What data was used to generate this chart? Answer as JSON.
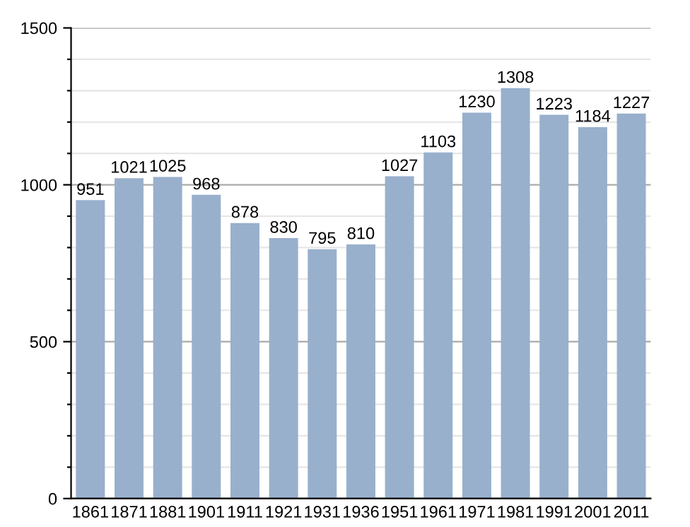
{
  "chart_data": {
    "type": "bar",
    "categories": [
      "1861",
      "1871",
      "1881",
      "1901",
      "1911",
      "1921",
      "1931",
      "1936",
      "1951",
      "1961",
      "1971",
      "1981",
      "1991",
      "2001",
      "2011"
    ],
    "values": [
      951,
      1021,
      1025,
      968,
      878,
      830,
      795,
      810,
      1027,
      1103,
      1230,
      1308,
      1223,
      1184,
      1227
    ],
    "color": "#98b0cc",
    "ylim": [
      0,
      1500
    ],
    "yticks": [
      0,
      {
        "value": 100,
        "label": null
      },
      {
        "value": 200,
        "label": null
      },
      {
        "value": 300,
        "label": null
      },
      {
        "value": 400,
        "label": null
      },
      500,
      {
        "value": 600,
        "label": null
      },
      {
        "value": 700,
        "label": null
      },
      {
        "value": 800,
        "label": null
      },
      {
        "value": 900,
        "label": null
      },
      1000,
      {
        "value": 1100,
        "label": null
      },
      {
        "value": 1200,
        "label": null
      },
      {
        "value": 1300,
        "label": null
      },
      {
        "value": 1400,
        "label": null
      },
      1500
    ],
    "grid": "y",
    "data_labels": true
  }
}
